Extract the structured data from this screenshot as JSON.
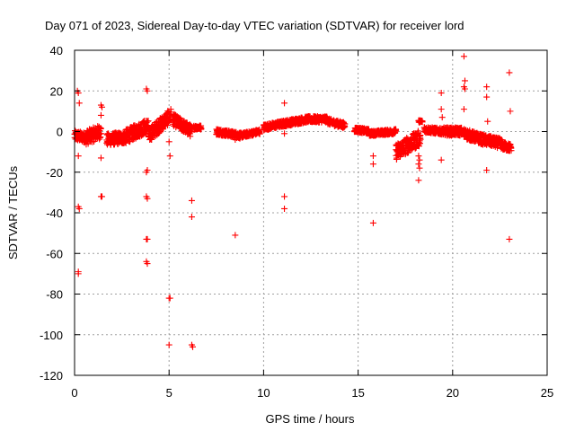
{
  "chart_data": {
    "type": "scatter",
    "title": "Day 071 of 2023, Sidereal Day-to-day VTEC variation (SDTVAR) for receiver lord",
    "xlabel": "GPS time / hours",
    "ylabel": "SDTVAR / TECUs",
    "xlim": [
      0,
      25
    ],
    "ylim": [
      -120,
      40
    ],
    "xticks": [
      0,
      5,
      10,
      15,
      20,
      25
    ],
    "yticks": [
      40,
      20,
      0,
      -20,
      -40,
      -60,
      -80,
      -100,
      -120
    ],
    "grid": true,
    "marker": "+",
    "color": "#ff0000",
    "dense_segments": [
      {
        "x0": 0.0,
        "x1": 0.6,
        "y0": -2,
        "y1": -3,
        "spread": 2.5
      },
      {
        "x0": 0.6,
        "x1": 1.4,
        "y0": -3,
        "y1": 0,
        "spread": 3.5
      },
      {
        "x0": 1.7,
        "x1": 2.6,
        "y0": -4,
        "y1": -3,
        "spread": 3
      },
      {
        "x0": 2.6,
        "x1": 3.9,
        "y0": -3,
        "y1": 3,
        "spread": 3.5
      },
      {
        "x0": 3.9,
        "x1": 5.1,
        "y0": -2,
        "y1": 8,
        "spread": 3.5
      },
      {
        "x0": 5.2,
        "x1": 6.2,
        "y0": 6,
        "y1": 0,
        "spread": 3
      },
      {
        "x0": 6.3,
        "x1": 6.7,
        "y0": 2,
        "y1": 2,
        "spread": 1
      },
      {
        "x0": 7.5,
        "x1": 8.8,
        "y0": 0,
        "y1": -2,
        "spread": 1.5
      },
      {
        "x0": 8.8,
        "x1": 9.8,
        "y0": -2,
        "y1": 0,
        "spread": 1.2
      },
      {
        "x0": 10.0,
        "x1": 11.1,
        "y0": 2,
        "y1": 4,
        "spread": 1.5
      },
      {
        "x0": 11.1,
        "x1": 12.3,
        "y0": 4,
        "y1": 6,
        "spread": 1.5
      },
      {
        "x0": 12.3,
        "x1": 13.4,
        "y0": 6,
        "y1": 6,
        "spread": 1.5
      },
      {
        "x0": 13.4,
        "x1": 14.3,
        "y0": 5,
        "y1": 3,
        "spread": 1.5
      },
      {
        "x0": 14.8,
        "x1": 15.6,
        "y0": 1,
        "y1": 0,
        "spread": 1.2
      },
      {
        "x0": 15.6,
        "x1": 17.0,
        "y0": -1,
        "y1": 0,
        "spread": 1.2
      },
      {
        "x0": 17.0,
        "x1": 18.3,
        "y0": -10,
        "y1": -3,
        "spread": 4
      },
      {
        "x0": 18.2,
        "x1": 18.4,
        "y0": 5,
        "y1": 5,
        "spread": 0.5
      },
      {
        "x0": 18.5,
        "x1": 19.5,
        "y0": 1,
        "y1": 0,
        "spread": 1.5
      },
      {
        "x0": 19.5,
        "x1": 20.5,
        "y0": 0,
        "y1": 0,
        "spread": 2
      },
      {
        "x0": 20.6,
        "x1": 21.6,
        "y0": -1,
        "y1": -4,
        "spread": 2.5
      },
      {
        "x0": 21.6,
        "x1": 22.6,
        "y0": -4,
        "y1": -6,
        "spread": 2.5
      },
      {
        "x0": 22.6,
        "x1": 23.1,
        "y0": -7,
        "y1": -8,
        "spread": 2
      }
    ],
    "outliers": [
      {
        "x": 0.15,
        "y": 20
      },
      {
        "x": 0.2,
        "y": 19
      },
      {
        "x": 0.25,
        "y": 14
      },
      {
        "x": 0.2,
        "y": -12
      },
      {
        "x": 0.2,
        "y": -37
      },
      {
        "x": 0.25,
        "y": -38
      },
      {
        "x": 0.2,
        "y": -69
      },
      {
        "x": 0.2,
        "y": -70
      },
      {
        "x": 1.4,
        "y": 13
      },
      {
        "x": 1.45,
        "y": 12
      },
      {
        "x": 1.4,
        "y": 8
      },
      {
        "x": 1.4,
        "y": -13
      },
      {
        "x": 1.4,
        "y": -32
      },
      {
        "x": 1.45,
        "y": -32
      },
      {
        "x": 3.8,
        "y": 21
      },
      {
        "x": 3.85,
        "y": 20
      },
      {
        "x": 3.8,
        "y": -20
      },
      {
        "x": 3.85,
        "y": -19
      },
      {
        "x": 3.8,
        "y": -32
      },
      {
        "x": 3.85,
        "y": -33
      },
      {
        "x": 3.8,
        "y": -53
      },
      {
        "x": 3.85,
        "y": -53
      },
      {
        "x": 3.8,
        "y": -64
      },
      {
        "x": 3.85,
        "y": -65
      },
      {
        "x": 5.0,
        "y": -5
      },
      {
        "x": 5.05,
        "y": -12
      },
      {
        "x": 5.0,
        "y": -82
      },
      {
        "x": 5.05,
        "y": -82
      },
      {
        "x": 5.0,
        "y": -105
      },
      {
        "x": 6.2,
        "y": -34
      },
      {
        "x": 6.2,
        "y": -42
      },
      {
        "x": 6.2,
        "y": -105
      },
      {
        "x": 6.25,
        "y": -106
      },
      {
        "x": 8.5,
        "y": -51
      },
      {
        "x": 8.5,
        "y": -4
      },
      {
        "x": 11.1,
        "y": 14
      },
      {
        "x": 11.1,
        "y": -1
      },
      {
        "x": 11.1,
        "y": -32
      },
      {
        "x": 11.1,
        "y": -38
      },
      {
        "x": 15.8,
        "y": -12
      },
      {
        "x": 15.8,
        "y": -16
      },
      {
        "x": 15.8,
        "y": -45
      },
      {
        "x": 18.2,
        "y": -12
      },
      {
        "x": 18.25,
        "y": -14
      },
      {
        "x": 18.2,
        "y": -16
      },
      {
        "x": 18.25,
        "y": -18
      },
      {
        "x": 18.2,
        "y": -24
      },
      {
        "x": 19.4,
        "y": 19
      },
      {
        "x": 19.4,
        "y": 11
      },
      {
        "x": 19.45,
        "y": 7
      },
      {
        "x": 19.4,
        "y": -14
      },
      {
        "x": 20.6,
        "y": 37
      },
      {
        "x": 20.65,
        "y": 25
      },
      {
        "x": 20.6,
        "y": 22
      },
      {
        "x": 20.65,
        "y": 21
      },
      {
        "x": 20.6,
        "y": 11
      },
      {
        "x": 21.8,
        "y": 22
      },
      {
        "x": 21.8,
        "y": 17
      },
      {
        "x": 21.85,
        "y": 5
      },
      {
        "x": 21.8,
        "y": -19
      },
      {
        "x": 23.0,
        "y": 29
      },
      {
        "x": 23.05,
        "y": 10
      },
      {
        "x": 23.0,
        "y": -53
      }
    ]
  }
}
